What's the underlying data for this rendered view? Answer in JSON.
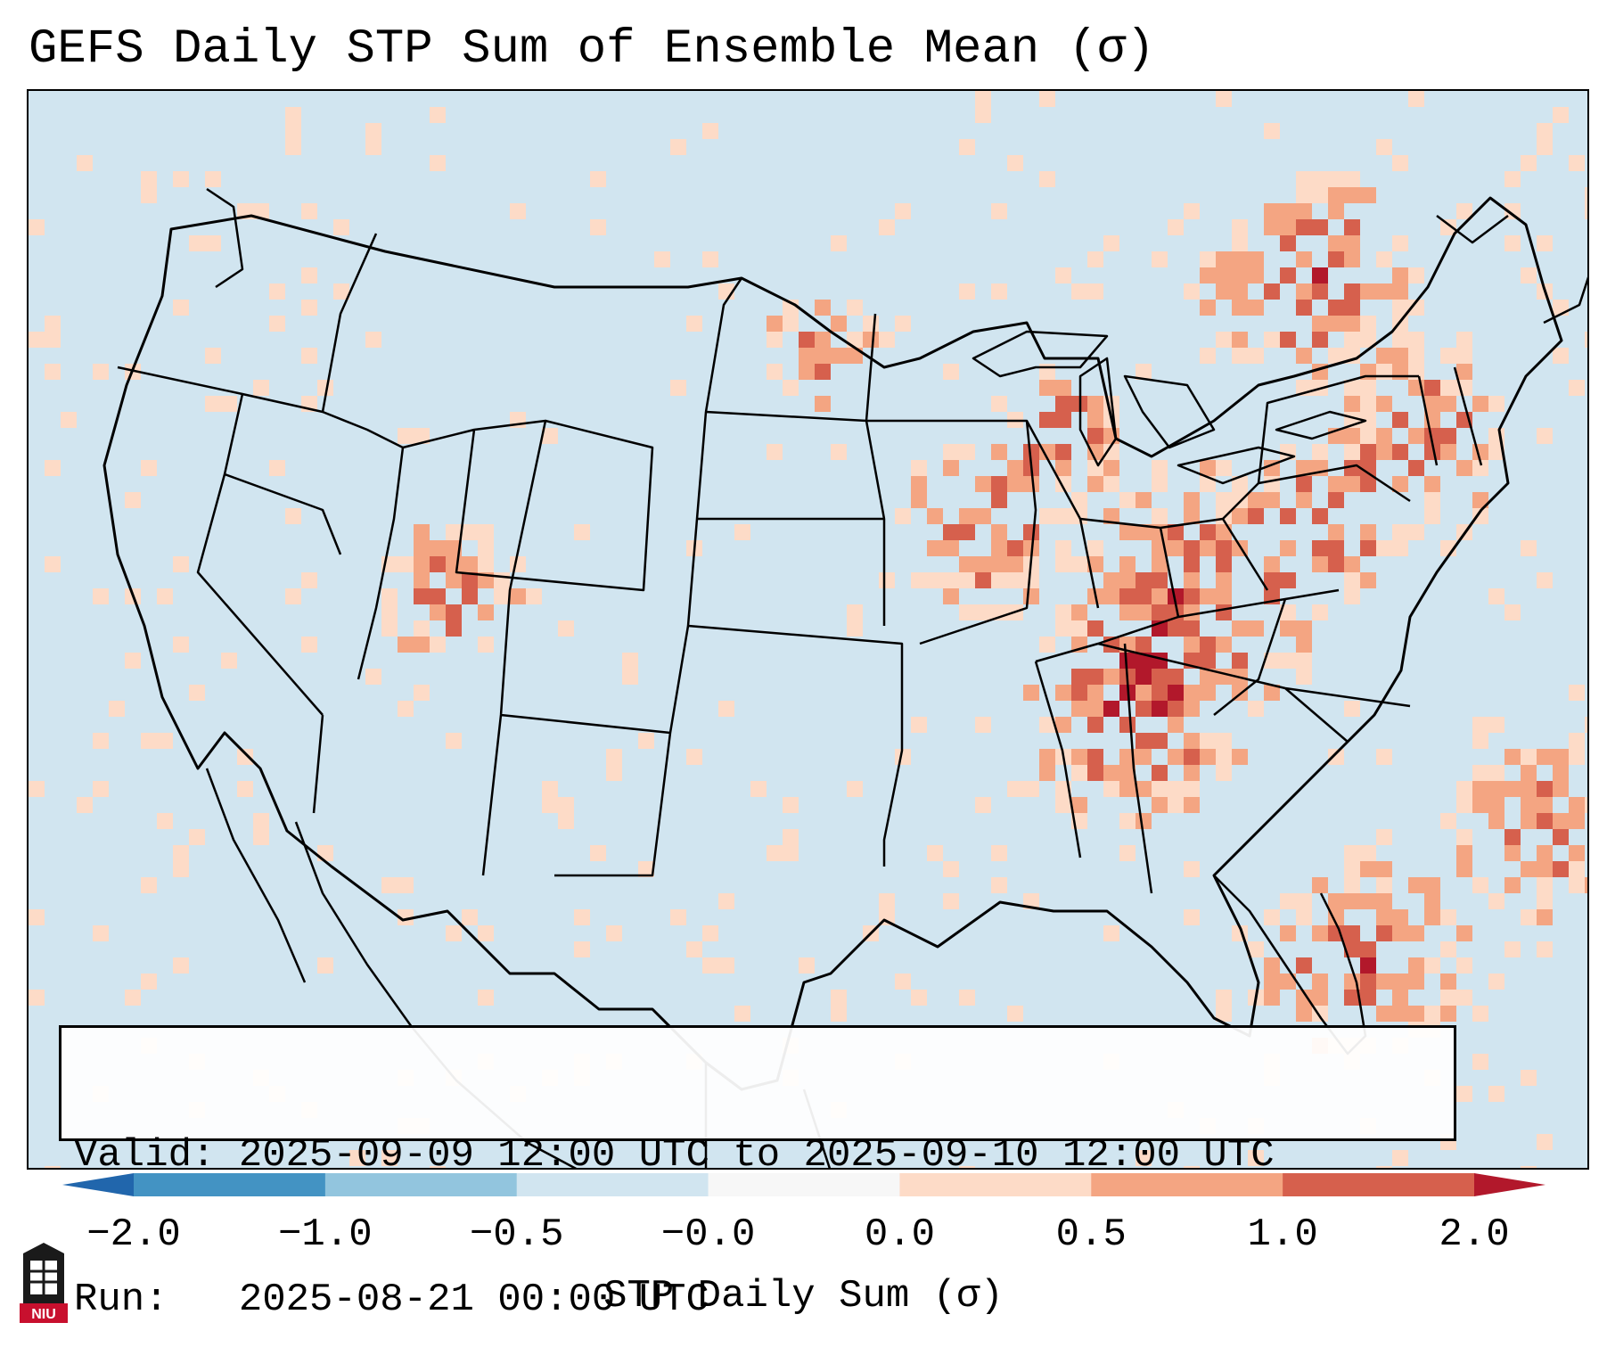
{
  "title": "GEFS Daily STP Sum of Ensemble Mean (σ)",
  "info": {
    "valid_label": "Valid:",
    "valid_value": "2025-09-09 12:00 UTC to 2025-09-10 12:00 UTC",
    "run_label": "Run:",
    "run_value": "2025-08-21 00:00 UTC"
  },
  "colorbar": {
    "label": "STP Daily Sum (σ)",
    "ticks": [
      "−2.0",
      "−1.0",
      "−0.5",
      "−0.0",
      "0.0",
      "0.5",
      "1.0",
      "2.0"
    ],
    "segments": [
      {
        "from": "−2.0",
        "to": "−1.0",
        "color": "#4393c3"
      },
      {
        "from": "−1.0",
        "to": "−0.5",
        "color": "#92c5de"
      },
      {
        "from": "−0.5",
        "to": "−0.0",
        "color": "#d1e5f0"
      },
      {
        "from": "−0.0",
        "to": "0.0",
        "color": "#f7f7f7"
      },
      {
        "from": "0.0",
        "to": "0.5",
        "color": "#fddbc7"
      },
      {
        "from": "0.5",
        "to": "1.0",
        "color": "#f4a582"
      },
      {
        "from": "1.0",
        "to": "2.0",
        "color": "#d6604d"
      }
    ],
    "under_color": "#2166ac",
    "over_color": "#b2182b"
  },
  "map": {
    "background_color": "#d1e5f0",
    "region": "Continental United States"
  },
  "logo": {
    "text": "NIU",
    "color": "#c8102e"
  }
}
